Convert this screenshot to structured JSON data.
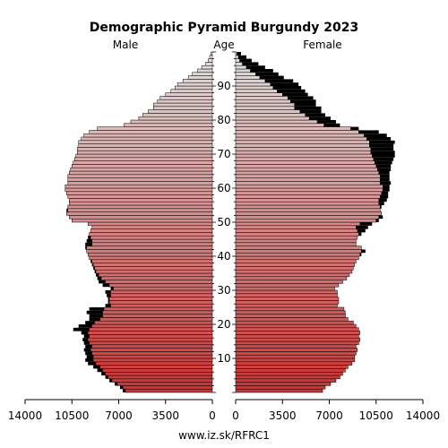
{
  "chart_data": {
    "type": "bar",
    "subtype": "population-pyramid",
    "title": "Demographic Pyramid Burgundy 2023",
    "left_label": "Male",
    "center_label": "Age",
    "right_label": "Female",
    "footer": "www.iz.sk/RFRC1",
    "x_ticks_left": [
      "14000",
      "10500",
      "7000",
      "3500",
      "0"
    ],
    "x_ticks_right": [
      "0",
      "3500",
      "7000",
      "10500",
      "14000"
    ],
    "x_tick_values": [
      14000,
      10500,
      7000,
      3500,
      0
    ],
    "y_ticks": [
      10,
      20,
      30,
      40,
      50,
      60,
      70,
      80,
      90
    ],
    "xlim": [
      0,
      14000
    ],
    "age_range": [
      0,
      100
    ],
    "colors": {
      "young": "#cc3333",
      "old": "#e0e0e0",
      "outline": "#000000",
      "excess": "#000000"
    },
    "series": [
      {
        "name": "Male",
        "values": [
          6700,
          6900,
          7300,
          7700,
          8000,
          8300,
          8600,
          8900,
          9300,
          9500,
          9400,
          9500,
          9600,
          9500,
          9600,
          9700,
          9600,
          9800,
          10400,
          10000,
          9500,
          9200,
          9200,
          9400,
          9200,
          8000,
          7800,
          7800,
          7900,
          8000,
          7600,
          8200,
          8500,
          8600,
          8700,
          8800,
          8900,
          9000,
          9100,
          9200,
          9300,
          9400,
          9500,
          9500,
          9400,
          9300,
          9200,
          9100,
          9000,
          9300,
          10500,
          10700,
          10900,
          10900,
          10800,
          10700,
          10700,
          10800,
          10900,
          11000,
          11000,
          10800,
          10800,
          10800,
          10700,
          10600,
          10500,
          10400,
          10300,
          10200,
          10100,
          10100,
          10000,
          10000,
          9800,
          9600,
          9200,
          8600,
          6600,
          6100,
          5500,
          5200,
          4800,
          4400,
          4400,
          4100,
          3900,
          3500,
          3100,
          2800,
          2600,
          2200,
          1800,
          1500,
          1100,
          800,
          500,
          300,
          200,
          100
        ]
      },
      {
        "name": "Female",
        "values": [
          6500,
          6700,
          7100,
          7500,
          7800,
          8000,
          8200,
          8400,
          8700,
          8900,
          8900,
          9000,
          9100,
          9000,
          9200,
          9300,
          9200,
          9300,
          9200,
          9000,
          8800,
          8400,
          8200,
          8200,
          8100,
          7600,
          7700,
          7700,
          7600,
          7600,
          7400,
          7700,
          8000,
          8300,
          8500,
          8700,
          8800,
          8900,
          9000,
          9200,
          9400,
          9700,
          9400,
          9000,
          9000,
          9100,
          9400,
          9700,
          9900,
          10200,
          10700,
          11000,
          10900,
          10800,
          10900,
          11100,
          11300,
          11400,
          11400,
          11500,
          11500,
          11600,
          11500,
          11500,
          11500,
          11600,
          11600,
          11700,
          11800,
          11900,
          11900,
          11800,
          11800,
          11900,
          11600,
          11300,
          10700,
          9200,
          7800,
          7500,
          7100,
          6700,
          6400,
          6400,
          6000,
          6000,
          5800,
          5400,
          5200,
          4900,
          4700,
          4300,
          3600,
          3200,
          2800,
          2200,
          1700,
          1200,
          800,
          400
        ]
      }
    ]
  }
}
